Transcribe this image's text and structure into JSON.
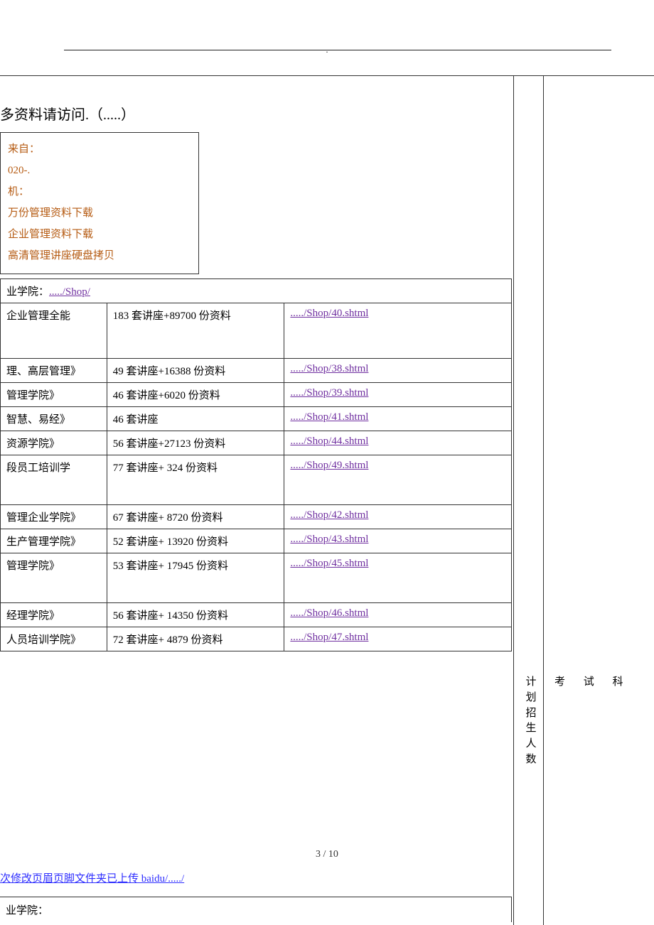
{
  "header": {
    "rule_char": "."
  },
  "title": "多资料请访问.（.....）",
  "info_box": {
    "l1": "来自：",
    "l2": "020-.",
    "l3": "机：",
    "l4": "万份管理资料下载",
    "l5": "企业管理资料下载",
    "l6": "高清管理讲座硬盘拷贝"
  },
  "table1": {
    "header": "业学院：...../Shop/",
    "rows": [
      {
        "c1": "企业管理全能",
        "c2": "183 套讲座+89700 份资料",
        "c3": "...../Shop/40.shtml",
        "tall": true
      },
      {
        "c1": "理、高层管理》",
        "c2": "49 套讲座+16388 份资料",
        "c3": "...../Shop/38.shtml"
      },
      {
        "c1": "管理学院》",
        "c2": "46 套讲座+6020 份资料",
        "c3": "...../Shop/39.shtml"
      },
      {
        "c1": "智慧、易经》",
        "c2": "46 套讲座",
        "c3": "...../Shop/41.shtml"
      },
      {
        "c1": "资源学院》",
        "c2": "56 套讲座+27123 份资料",
        "c3": "...../Shop/44.shtml"
      },
      {
        "c1": "段员工培训学",
        "c2": "77 套讲座+ 324 份资料",
        "c3": "...../Shop/49.shtml",
        "med": true
      },
      {
        "c1": "管理企业学院》",
        "c2": "67 套讲座+ 8720 份资料",
        "c3": "...../Shop/42.shtml"
      },
      {
        "c1": "生产管理学院》",
        "c2": "52 套讲座+ 13920 份资料",
        "c3": "...../Shop/43.shtml"
      },
      {
        "c1": "管理学院》",
        "c2": "53 套讲座+ 17945 份资料",
        "c3": "...../Shop/45.shtml",
        "med": true
      },
      {
        "c1": "经理学院》",
        "c2": "56 套讲座+ 14350 份资料",
        "c3": "...../Shop/46.shtml"
      },
      {
        "c1": "人员培训学院》",
        "c2": "72 套讲座+ 4879 份资料",
        "c3": "...../Shop/47.shtml"
      }
    ]
  },
  "page_num": "3 / 10",
  "footer_link": "次修改页眉页脚文件夹已上传 baidu/...../",
  "table2_header": "业学院：",
  "side": {
    "jihua": "计划招生人数",
    "kao": "考",
    "shi": "试",
    "ke": "科"
  },
  "colors": {
    "info_text": "#b55a11",
    "link": "#7030a0",
    "footer_link": "#2e2eff",
    "border": "#333333"
  }
}
